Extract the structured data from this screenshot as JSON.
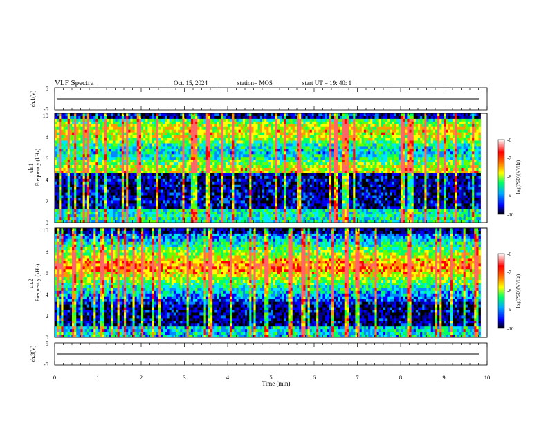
{
  "header": {
    "title": "VLF Spectra",
    "date": "Oct. 15, 2024",
    "station": "station= MOS",
    "start": "start  UT  =   19: 40: 1"
  },
  "chart_data": [
    {
      "type": "line",
      "panel": "ch1_voltage",
      "ylabel": "ch.1(V)",
      "ylim": [
        -5,
        5
      ],
      "yticks": [
        "5",
        "-5"
      ],
      "xlim": [
        0,
        10
      ],
      "series": [
        {
          "x": [
            0,
            10
          ],
          "values": [
            0,
            0
          ]
        }
      ]
    },
    {
      "type": "heatmap",
      "panel": "ch1_spectrogram",
      "ylabel": "ch.1\nFrequency (kHz)",
      "ylim": [
        0,
        10
      ],
      "yticks": [
        "0",
        "2",
        "4",
        "6",
        "8",
        "10"
      ],
      "xlim": [
        0,
        9.85
      ],
      "colorbar": {
        "label": "log(PSD)(V²/Hz)",
        "range": [
          -10,
          -6
        ],
        "ticks": [
          "-6",
          "-7",
          "-8",
          "-9",
          "-10"
        ]
      }
    },
    {
      "type": "heatmap",
      "panel": "ch2_spectrogram",
      "ylabel": "ch.2\nFrequency (kHz)",
      "ylim": [
        0,
        10
      ],
      "yticks": [
        "0",
        "2",
        "4",
        "6",
        "8",
        "10"
      ],
      "xlim": [
        0,
        9.85
      ],
      "colorbar": {
        "label": "log(PSD)(V²/Hz)",
        "range": [
          -10,
          -6
        ],
        "ticks": [
          "-6",
          "-7",
          "-8",
          "-9",
          "-10"
        ]
      }
    },
    {
      "type": "line",
      "panel": "ch3_voltage",
      "ylabel": "ch.3(V)",
      "ylim": [
        -5,
        5
      ],
      "yticks": [
        "5",
        "-5"
      ],
      "xlim": [
        0,
        10
      ],
      "series": [
        {
          "x": [
            0,
            10
          ],
          "values": [
            0,
            0
          ]
        }
      ]
    }
  ],
  "x_axis": {
    "label": "Time  (min)",
    "ticks": [
      "0",
      "1",
      "2",
      "3",
      "4",
      "5",
      "6",
      "7",
      "8",
      "9",
      "10"
    ]
  },
  "colormap": [
    "#000000",
    "#000080",
    "#0000ff",
    "#00aaff",
    "#00ffcc",
    "#00ff00",
    "#ffff00",
    "#ff8800",
    "#ff0000",
    "#ffffff"
  ]
}
